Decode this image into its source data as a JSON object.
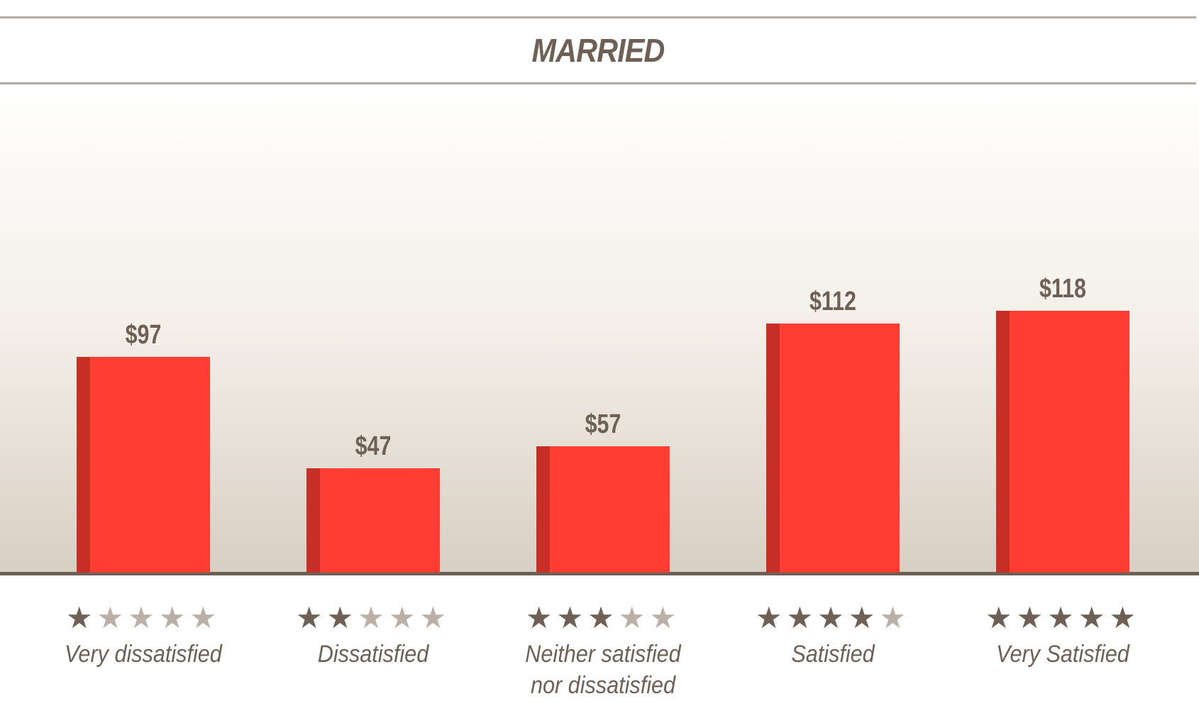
{
  "chart_data": {
    "type": "bar",
    "title": "MARRIED",
    "categories": [
      "Very dissatisfied",
      "Dissatisfied",
      "Neither satisfied nor dissatisfied",
      "Satisfied",
      "Very Satisfied"
    ],
    "category_lines": [
      [
        "Very dissatisfied"
      ],
      [
        "Dissatisfied"
      ],
      [
        "Neither satisfied",
        "nor dissatisfied"
      ],
      [
        "Satisfied"
      ],
      [
        "Very Satisfied"
      ]
    ],
    "values": [
      97,
      47,
      57,
      112,
      118
    ],
    "data_labels": [
      "$97",
      "$47",
      "$57",
      "$112",
      "$118"
    ],
    "star_ratings": [
      1,
      2,
      3,
      4,
      5
    ],
    "star_max": 5,
    "xlabel": "",
    "ylabel": "",
    "ylim": [
      0,
      220
    ],
    "grid": false,
    "colors": {
      "bar": "#ff3d32",
      "bar_shade": "#c62f25",
      "text": "#6e6054",
      "star_on": "#6e6054",
      "star_off": "#bbb0a7"
    }
  }
}
